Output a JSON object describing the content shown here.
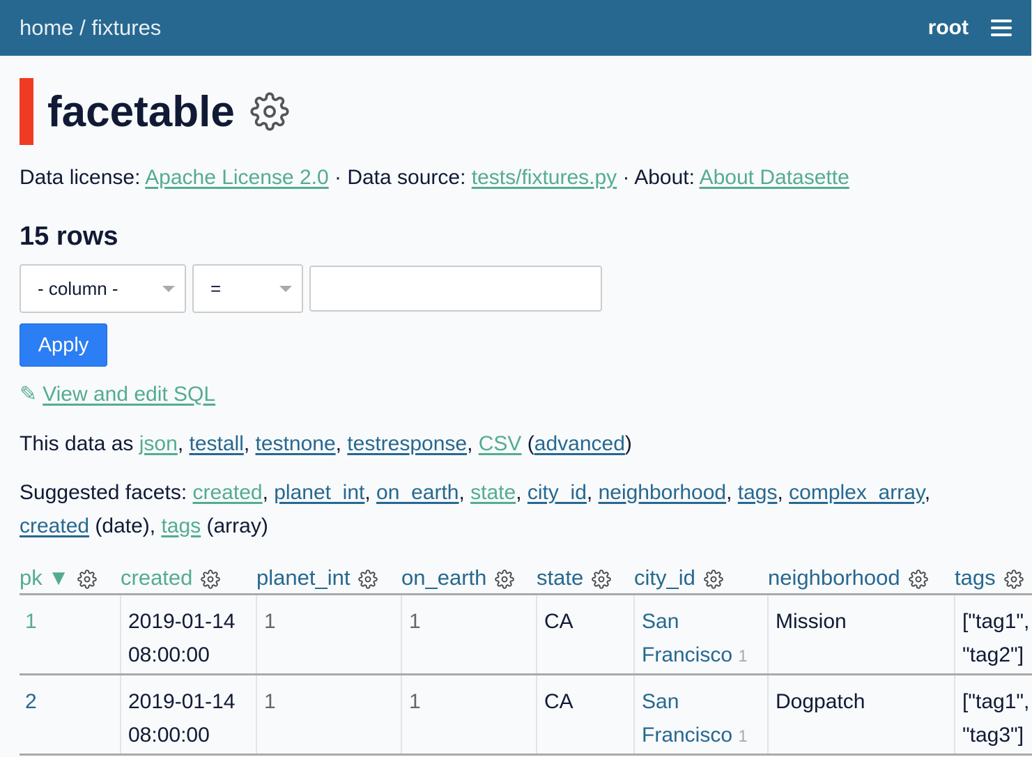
{
  "header": {
    "home": "home",
    "separator": " / ",
    "database": "fixtures",
    "user": "root"
  },
  "title": "facetable",
  "meta": {
    "license_label": "Data license:",
    "license": "Apache License 2.0",
    "source_label": "Data source:",
    "source": "tests/fixtures.py",
    "about_label": "About:",
    "about": "About Datasette",
    "dot": " · "
  },
  "row_count": "15 rows",
  "filter": {
    "column": "- column -",
    "op": "=",
    "value": "",
    "apply": "Apply"
  },
  "sql_link": "View and edit SQL",
  "export": {
    "prefix": "This data as ",
    "json": "json",
    "testall": "testall",
    "testnone": "testnone",
    "testresponse": "testresponse",
    "csv": "CSV",
    "advanced": "advanced"
  },
  "facets": {
    "label": "Suggested facets: ",
    "items": [
      "created",
      "planet_int",
      "on_earth",
      "state",
      "city_id",
      "neighborhood",
      "tags",
      "complex_array"
    ],
    "created_date": "created",
    "date_suffix": " (date), ",
    "tags_array": "tags",
    "array_suffix": " (array)"
  },
  "columns": [
    "pk",
    "created",
    "planet_int",
    "on_earth",
    "state",
    "city_id",
    "neighborhood",
    "tags"
  ],
  "sort_indicator": "▼",
  "rows": [
    {
      "pk": "1",
      "created": "2019-01-14 08:00:00",
      "planet_int": "1",
      "on_earth": "1",
      "state": "CA",
      "city": "San Francisco",
      "city_id": "1",
      "neighborhood": "Mission",
      "tags": "[\"tag1\",\n\"tag2\"]"
    },
    {
      "pk": "2",
      "created": "2019-01-14 08:00:00",
      "planet_int": "1",
      "on_earth": "1",
      "state": "CA",
      "city": "San Francisco",
      "city_id": "1",
      "neighborhood": "Dogpatch",
      "tags": "[\"tag1\",\n\"tag3\"]"
    }
  ],
  "colors": {
    "header": "#276890",
    "link": "#276890",
    "visited_link": "#54ac8e",
    "accent": "#ef3b24",
    "button": "#2b7ef3"
  }
}
